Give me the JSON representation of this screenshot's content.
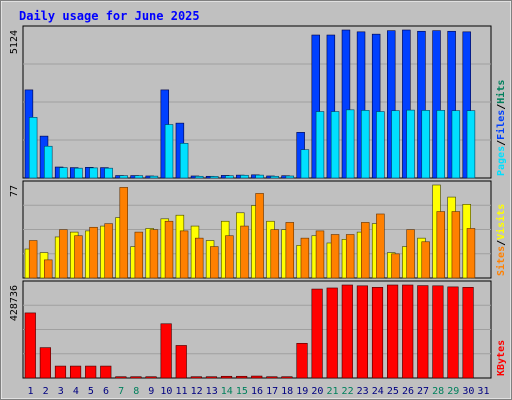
{
  "chart_data": [
    {
      "type": "bar",
      "title": "Daily usage for June 2025",
      "panel": "hits-files-pages",
      "categories": [
        "1",
        "2",
        "3",
        "4",
        "5",
        "6",
        "7",
        "8",
        "9",
        "10",
        "11",
        "12",
        "13",
        "14",
        "15",
        "16",
        "17",
        "18",
        "19",
        "20",
        "21",
        "22",
        "23",
        "24",
        "25",
        "26",
        "27",
        "28",
        "29",
        "30",
        "31"
      ],
      "y_max_label": "5124",
      "ylim": [
        0,
        5124
      ],
      "series": [
        {
          "name": "Hits",
          "color": "#00805c",
          "values": [
            3050,
            1450,
            380,
            360,
            370,
            360,
            85,
            85,
            70,
            3050,
            1900,
            70,
            60,
            90,
            100,
            110,
            70,
            80,
            1580,
            4950,
            4950,
            5124,
            5060,
            4980,
            5100,
            5124,
            5080,
            5100,
            5080,
            5060,
            0
          ]
        },
        {
          "name": "Files",
          "color": "#0040ff",
          "values": [
            3050,
            1450,
            380,
            360,
            370,
            360,
            85,
            85,
            70,
            3050,
            1900,
            70,
            60,
            90,
            100,
            110,
            70,
            80,
            1580,
            4950,
            4950,
            5124,
            5060,
            4980,
            5100,
            5124,
            5080,
            5100,
            5080,
            5060,
            0
          ]
        },
        {
          "name": "Pages",
          "color": "#00e0ff",
          "values": [
            2100,
            1100,
            360,
            340,
            350,
            340,
            80,
            80,
            65,
            1850,
            1200,
            60,
            55,
            80,
            95,
            100,
            60,
            70,
            980,
            2300,
            2300,
            2360,
            2340,
            2300,
            2330,
            2350,
            2340,
            2340,
            2330,
            2330,
            0
          ]
        }
      ],
      "legend_placement": "right"
    },
    {
      "type": "bar",
      "panel": "visits-sites",
      "categories": [
        "1",
        "2",
        "3",
        "4",
        "5",
        "6",
        "7",
        "8",
        "9",
        "10",
        "11",
        "12",
        "13",
        "14",
        "15",
        "16",
        "17",
        "18",
        "19",
        "20",
        "21",
        "22",
        "23",
        "24",
        "25",
        "26",
        "27",
        "28",
        "29",
        "30",
        "31"
      ],
      "y_max_label": "77",
      "ylim": [
        0,
        77
      ],
      "series": [
        {
          "name": "Visits",
          "color": "#ffff00",
          "values": [
            24,
            21,
            34,
            38,
            39,
            43,
            50,
            26,
            41,
            49,
            52,
            43,
            31,
            47,
            54,
            60,
            47,
            40,
            27,
            35,
            29,
            32,
            38,
            45,
            21,
            26,
            33,
            77,
            67,
            61,
            0
          ]
        },
        {
          "name": "Sites",
          "color": "#ff8000",
          "values": [
            31,
            15,
            40,
            35,
            42,
            45,
            75,
            38,
            40,
            47,
            39,
            33,
            26,
            35,
            43,
            70,
            40,
            46,
            33,
            39,
            36,
            36,
            46,
            53,
            20,
            40,
            30,
            55,
            55,
            41,
            0
          ]
        }
      ],
      "legend_placement": "right"
    },
    {
      "type": "bar",
      "panel": "kbytes",
      "categories": [
        "1",
        "2",
        "3",
        "4",
        "5",
        "6",
        "7",
        "8",
        "9",
        "10",
        "11",
        "12",
        "13",
        "14",
        "15",
        "16",
        "17",
        "18",
        "19",
        "20",
        "21",
        "22",
        "23",
        "24",
        "25",
        "26",
        "27",
        "28",
        "29",
        "30",
        "31"
      ],
      "y_max_label": "428736",
      "ylim": [
        0,
        428736
      ],
      "series": [
        {
          "name": "KBytes",
          "color": "#ff0000",
          "values": [
            300000,
            140000,
            55000,
            55000,
            55000,
            55000,
            6000,
            6000,
            6000,
            250000,
            150000,
            6000,
            6000,
            8000,
            8000,
            9000,
            6000,
            6000,
            160000,
            410000,
            415000,
            428736,
            425000,
            418000,
            428736,
            428736,
            426000,
            425000,
            420000,
            418000,
            0
          ]
        }
      ],
      "legend_placement": "right"
    }
  ],
  "weekend_days": [
    "7",
    "8",
    "14",
    "15",
    "21",
    "22",
    "28",
    "29"
  ],
  "colors": {
    "background": "#c0c0c0",
    "plot_bg": "#c0c0c0",
    "title": "#0000ff",
    "day_label": "#000080",
    "weekend_label": "#00805c",
    "gridline": "#a0a0a0"
  }
}
